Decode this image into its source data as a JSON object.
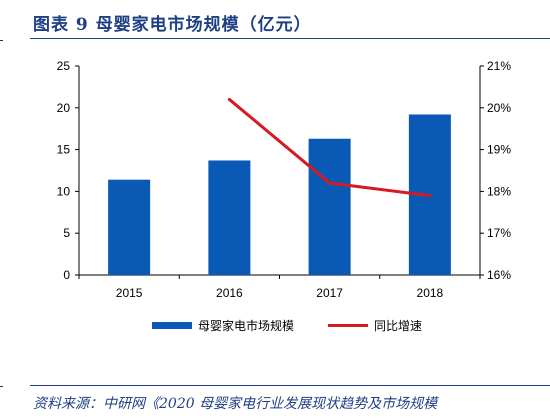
{
  "header": {
    "title_prefix": "图表",
    "title_number": "9",
    "title_text": "母婴家电市场规模（亿元）"
  },
  "footer": {
    "source_label": "资料来源：",
    "source_text": "中研网《2020 母婴家电行业发展现状趋势及市场规模"
  },
  "colors": {
    "bar": "#0a5ab5",
    "line": "#d71920",
    "accent": "#1f3f84"
  },
  "chart_data": {
    "type": "bar",
    "categories": [
      "2015",
      "2016",
      "2017",
      "2018"
    ],
    "series": [
      {
        "name": "母婴家电市场规模",
        "type": "bar",
        "axis": "left",
        "values": [
          11.4,
          13.7,
          16.3,
          19.2
        ]
      },
      {
        "name": "同比增速",
        "type": "line",
        "axis": "right",
        "values": [
          null,
          20.2,
          18.2,
          17.9
        ]
      }
    ],
    "y_left": {
      "min": 0,
      "max": 25,
      "ticks": [
        "0",
        "5",
        "10",
        "15",
        "20",
        "25"
      ]
    },
    "y_right": {
      "min": 16,
      "max": 21,
      "ticks": [
        "16%",
        "17%",
        "18%",
        "19%",
        "20%",
        "21%"
      ]
    },
    "grid": false,
    "legend_position": "bottom"
  }
}
